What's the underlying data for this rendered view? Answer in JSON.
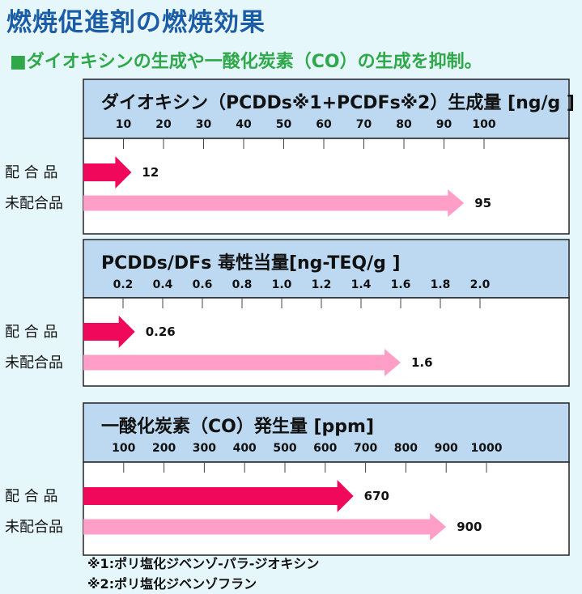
{
  "title": "燃焼促進剤の燃焼効果",
  "subtitle": "■ダイオキシンの生成や一酸化炭素（CO）の生成を抑制。",
  "footnotes": [
    "※1:ポリ塩化ジベンゾ-パラ-ジオキシン",
    "※2:ポリ塩化ジベンゾフラン"
  ],
  "colors": {
    "blended": "#f0085a",
    "unblended": "#ff9fc8",
    "header": "#bcd9f1",
    "title": "#1b5ea8",
    "subtitle": "#2fa84a"
  },
  "row_labels": [
    "配 合 品",
    "未配合品"
  ],
  "chart_data": [
    {
      "type": "bar",
      "orientation": "horizontal",
      "title": "ダイオキシン（PCDDs※1+PCDFs※2）生成量 [ng/g ]",
      "ticks": [
        10,
        20,
        30,
        40,
        50,
        60,
        70,
        80,
        90,
        100
      ],
      "tick_labels": [
        "10",
        "20",
        "30",
        "40",
        "50",
        "60",
        "70",
        "80",
        "90",
        "100"
      ],
      "xlim": [
        0,
        100
      ],
      "categories": [
        "配 合 品",
        "未配合品"
      ],
      "values": [
        12,
        95
      ],
      "value_labels": [
        "12",
        "95"
      ]
    },
    {
      "type": "bar",
      "orientation": "horizontal",
      "title": "PCDDs/DFs 毒性当量[ng-TEQ/g ]",
      "ticks": [
        0.2,
        0.4,
        0.6,
        0.8,
        1.0,
        1.2,
        1.4,
        1.6,
        1.8,
        2.0
      ],
      "tick_labels": [
        "0.2",
        "0.4",
        "0.6",
        "0.8",
        "1.0",
        "1.2",
        "1.4",
        "1.6",
        "1.8",
        "2.0"
      ],
      "xlim": [
        0,
        2.0
      ],
      "categories": [
        "配 合 品",
        "未配合品"
      ],
      "values": [
        0.26,
        1.6
      ],
      "value_labels": [
        "0.26",
        "1.6"
      ]
    },
    {
      "type": "bar",
      "orientation": "horizontal",
      "title": "一酸化炭素（CO）発生量 [ppm]",
      "ticks": [
        100,
        200,
        300,
        400,
        500,
        600,
        700,
        800,
        900,
        1000
      ],
      "tick_labels": [
        "100",
        "200",
        "300",
        "400",
        "500",
        "600",
        "700",
        "800",
        "900",
        "1000"
      ],
      "xlim": [
        0,
        1000
      ],
      "categories": [
        "配 合 品",
        "未配合品"
      ],
      "values": [
        670,
        900
      ],
      "value_labels": [
        "670",
        "900"
      ]
    }
  ]
}
